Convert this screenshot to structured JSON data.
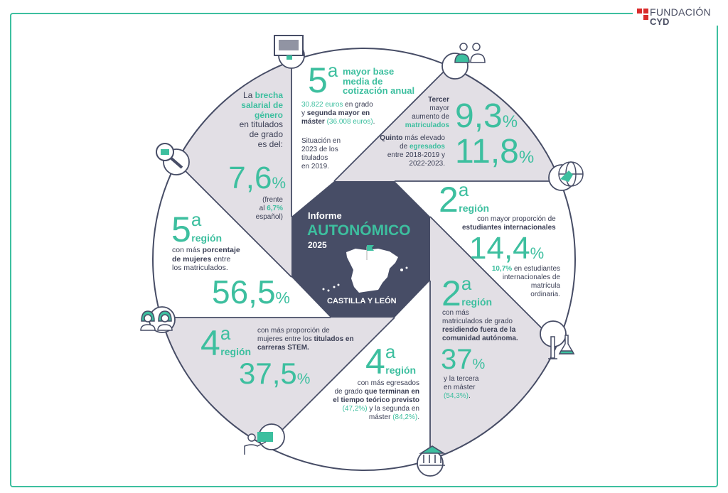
{
  "colors": {
    "accent": "#3dbf9f",
    "dark": "#474d66",
    "sector": "#e2dfe5",
    "logo_red": "#d92b2b"
  },
  "logo": {
    "line1": "FUNDACIÓN",
    "line2": "CYD"
  },
  "center": {
    "title1": "Informe",
    "title2": "AUTONÓMICO",
    "year": "2025",
    "region": "CASTILLA Y LEÓN"
  },
  "icons": [
    "monitor-icon",
    "people-icon",
    "globe-icon",
    "flask-icon",
    "bank-icon",
    "teacher-icon",
    "women-icon",
    "job-search-icon"
  ],
  "brecha": {
    "text": [
      [
        "La ",
        "n"
      ],
      [
        "brecha\nsalarial de\ngénero",
        "tb"
      ],
      [
        "\nen titulados\nde grado\nes del:",
        "n"
      ]
    ],
    "value": "7,6",
    "unit": "%",
    "note": [
      [
        "(frente\nal ",
        "n"
      ],
      [
        "6,7%",
        "tb"
      ],
      [
        "\nespañol)",
        "n"
      ]
    ]
  },
  "cotizacion": {
    "ord_num": "5",
    "ord_sup": "a",
    "title": "mayor base\nmedia de\ncotización anual",
    "text": [
      [
        "30.822 euros",
        "t"
      ],
      [
        " en grado\ny ",
        "n"
      ],
      [
        "segunda mayor en\nmáster",
        "b"
      ],
      [
        " ",
        "n"
      ],
      [
        "(36.008 euros)",
        "t"
      ],
      [
        ".",
        "n"
      ]
    ],
    "note": "Situación en\n2023 de los\ntitulados\nen 2019."
  },
  "matriculados": {
    "text1": [
      [
        "Tercer",
        "b"
      ],
      [
        "\nmayor\naumento de\n",
        "n"
      ],
      [
        "matriculados",
        "tb"
      ]
    ],
    "value1": "9,3",
    "unit": "%",
    "text2": [
      [
        "Quinto",
        "b"
      ],
      [
        " más elevado\nde ",
        "n"
      ],
      [
        "egresados",
        "tb"
      ],
      [
        "\nentre 2018-2019 y\n2022-2023.",
        "n"
      ]
    ],
    "value2": "11,8"
  },
  "internacionales": {
    "ord_num": "2",
    "ord_sup": "a",
    "ord_label": "región",
    "text": [
      [
        "con mayor proporción de\n",
        "n"
      ],
      [
        "estudiantes internacionales",
        "b"
      ]
    ],
    "value": "14,4",
    "unit": "%",
    "note": [
      [
        "10,7%",
        "tb"
      ],
      [
        " en estudiantes\ninternacionales de\nmatrícula\nordinaria.",
        "n"
      ]
    ]
  },
  "fuera": {
    "ord_num": "2",
    "ord_sup": "a",
    "ord_label": "región",
    "text": [
      [
        "con más\nmatriculados de grado\n",
        "n"
      ],
      [
        "residiendo fuera de la\ncomunidad autónoma.",
        "b"
      ]
    ],
    "value": "37",
    "unit": "%",
    "note": [
      [
        "y la tercera\nen máster\n",
        "n"
      ],
      [
        "(54,3%)",
        "t"
      ],
      [
        ".",
        "n"
      ]
    ]
  },
  "egresados": {
    "ord_num": "4",
    "ord_sup": "a",
    "ord_label": "región",
    "text": [
      [
        "con más egresados\nde grado ",
        "n"
      ],
      [
        "que terminan en\nel tiempo teórico previsto",
        "b"
      ],
      [
        "\n",
        "n"
      ],
      [
        "(47,2%)",
        "t"
      ],
      [
        " y la segunda en\nmáster ",
        "n"
      ],
      [
        "(84,2%)",
        "t"
      ],
      [
        ".",
        "n"
      ]
    ]
  },
  "stem": {
    "ord_num": "4",
    "ord_sup": "a",
    "ord_label": "región",
    "text": [
      [
        "con más proporción de\nmujeres entre los ",
        "n"
      ],
      [
        "titulados en\ncarreras STEM.",
        "b"
      ]
    ],
    "value": "37,5",
    "unit": "%"
  },
  "mujeres": {
    "ord_num": "5",
    "ord_sup": "a",
    "ord_label": "región",
    "text": [
      [
        "con más ",
        "n"
      ],
      [
        "porcentaje\nde mujeres",
        "b"
      ],
      [
        " entre\nlos matriculados.",
        "n"
      ]
    ],
    "value": "56,5",
    "unit": "%"
  }
}
